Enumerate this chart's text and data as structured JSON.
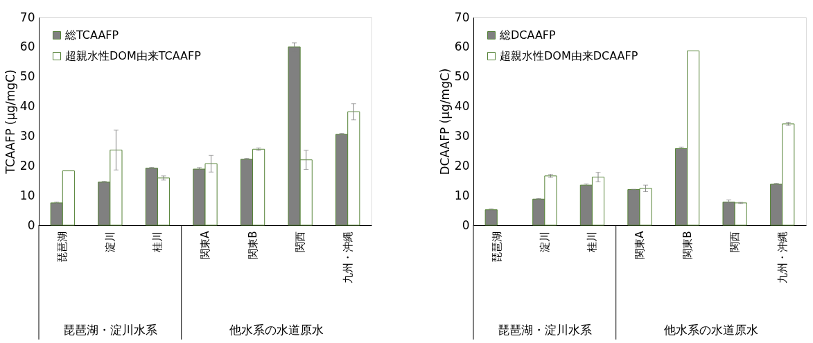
{
  "chart_data": [
    {
      "type": "bar",
      "ylabel": "TCAAFP (µg/mgC)",
      "categories": [
        "琵琶湖",
        "淀川",
        "桂川",
        "関東A",
        "関東B",
        "関西",
        "九州・沖縄"
      ],
      "ylim": [
        0,
        70
      ],
      "yticks": [
        0,
        10,
        20,
        30,
        40,
        50,
        60,
        70
      ],
      "grid": false,
      "legend": "top left",
      "annotations": [
        "琵琶湖・淀川水系",
        "他水系の水道原水"
      ],
      "series": [
        {
          "name": "総TCAAFP",
          "color": "#808080",
          "values": [
            7.5,
            14.5,
            19.2,
            18.9,
            22.2,
            60.0,
            30.6
          ],
          "errors": [
            0.3,
            0.3,
            0.3,
            0.5,
            0.3,
            1.4,
            0.3
          ]
        },
        {
          "name": "超親水性DOM由来TCAAFP",
          "color": "#ffffff",
          "values": [
            18.3,
            25.3,
            15.9,
            20.7,
            25.6,
            22.0,
            38.2
          ],
          "errors": [
            null,
            6.7,
            0.7,
            2.8,
            0.4,
            3.2,
            2.7
          ]
        }
      ]
    },
    {
      "type": "bar",
      "ylabel": "DCAAFP (µg/mgC)",
      "categories": [
        "琵琶湖",
        "淀川",
        "桂川",
        "関東A",
        "関東B",
        "関西",
        "九州・沖縄"
      ],
      "ylim": [
        0,
        70
      ],
      "yticks": [
        0,
        10,
        20,
        30,
        40,
        50,
        60,
        70
      ],
      "grid": false,
      "legend": "top left",
      "annotations": [
        "琵琶湖・淀川水系",
        "他水系の水道原水"
      ],
      "series": [
        {
          "name": "総DCAAFP",
          "color": "#808080",
          "values": [
            5.2,
            8.8,
            13.5,
            12.0,
            25.8,
            7.8,
            13.8
          ],
          "errors": [
            0.3,
            0.2,
            0.4,
            0.1,
            0.5,
            0.7,
            0.3
          ]
        },
        {
          "name": "超親水性DOM由来DCAAFP",
          "color": "#ffffff",
          "values": [
            null,
            16.6,
            16.2,
            12.4,
            58.7,
            7.5,
            34.1
          ],
          "errors": [
            null,
            0.5,
            1.6,
            1.1,
            null,
            0.2,
            0.5
          ]
        }
      ]
    }
  ]
}
